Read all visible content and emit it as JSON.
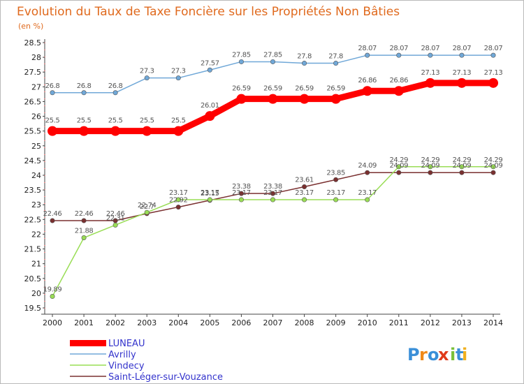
{
  "chart_data": {
    "type": "line",
    "title": "Evolution du Taux de Taxe Foncière sur les Propriétés Non Bâties",
    "subtitle": "(en %)",
    "xlabel": "",
    "ylabel": "(en %)",
    "ylim": [
      19.5,
      28.5
    ],
    "y_ticks": [
      "19.5",
      "20",
      "20.5",
      "21",
      "21.5",
      "22",
      "22.5",
      "23",
      "23.5",
      "24",
      "24.5",
      "25",
      "25.5",
      "26",
      "26.5",
      "27",
      "27.5",
      "28",
      "28.5"
    ],
    "grid": false,
    "legend_position": "bottom-left",
    "categories": [
      "2000",
      "2001",
      "2002",
      "2003",
      "2004",
      "2005",
      "2006",
      "2007",
      "2008",
      "2009",
      "2010",
      "2011",
      "2012",
      "2013",
      "2014"
    ],
    "series": [
      {
        "name": "LUNEAU",
        "color": "#ff0000",
        "style": "thick",
        "values": [
          25.5,
          25.5,
          25.5,
          25.5,
          25.5,
          26.01,
          26.59,
          26.59,
          26.59,
          26.59,
          26.86,
          26.86,
          27.13,
          27.13,
          27.13
        ],
        "labels": [
          "25.5",
          "25.5",
          "25.5",
          "25.5",
          "25.5",
          "26.01",
          "26.59",
          "26.59",
          "26.59",
          "26.59",
          "26.86",
          "26.86",
          "27.13",
          "27.13",
          "27.13"
        ]
      },
      {
        "name": "Avrilly",
        "color": "#70a8d8",
        "style": "thin",
        "values": [
          26.8,
          26.8,
          26.8,
          27.3,
          27.3,
          27.57,
          27.85,
          27.85,
          27.8,
          27.8,
          28.07,
          28.07,
          28.07,
          28.07,
          28.07
        ],
        "labels": [
          "26.8",
          "26.8",
          "26.8",
          "27.3",
          "27.3",
          "27.57",
          "27.85",
          "27.85",
          "27.8",
          "27.8",
          "28.07",
          "28.07",
          "28.07",
          "28.07",
          "28.07"
        ]
      },
      {
        "name": "Vindecy",
        "color": "#99dd55",
        "style": "thin",
        "values": [
          19.89,
          21.88,
          22.31,
          22.74,
          23.17,
          23.17,
          23.17,
          23.17,
          23.17,
          23.17,
          23.17,
          24.29,
          24.29,
          24.29,
          24.29
        ],
        "labels": [
          "19.89",
          "21.88",
          "22.31",
          "22.74",
          "23.17",
          "23.17",
          "23.17",
          "23.17",
          "23.17",
          "23.17",
          "23.17",
          "24.29",
          "24.29",
          "24.29",
          "24.29"
        ]
      },
      {
        "name": "Saint-Léger-sur-Vouzance",
        "color": "#7a3030",
        "style": "thin",
        "values": [
          22.46,
          22.46,
          22.46,
          22.7,
          22.92,
          23.15,
          23.38,
          23.38,
          23.61,
          23.85,
          24.09,
          24.09,
          24.09,
          24.09,
          24.09
        ],
        "labels": [
          "22.46",
          "22.46",
          "22.46",
          "22.7",
          "22.92",
          "23.15",
          "23.38",
          "23.38",
          "23.61",
          "23.85",
          "24.09",
          "24.09",
          "24.09",
          "24.09",
          "24.09"
        ]
      }
    ]
  },
  "logo": {
    "text": "Proxiti",
    "colors": [
      "#3a8fd8",
      "#f08a1a",
      "#3a8fd8",
      "#e03a1a",
      "#7ac03a",
      "#3a8fd8",
      "#f0b020"
    ]
  }
}
